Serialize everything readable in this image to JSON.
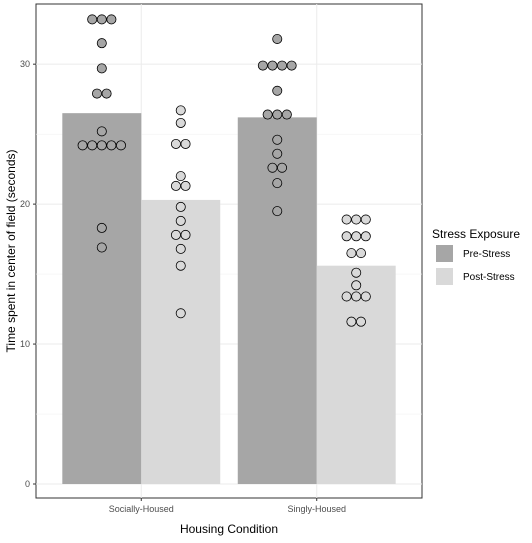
{
  "chart_data": {
    "type": "bar",
    "xlabel": "Housing Condition",
    "ylabel": "Time spent in center of field (seconds)",
    "categories": [
      "Socially-Housed",
      "Singly-Housed"
    ],
    "ylim": [
      -1,
      34.3
    ],
    "yticks": [
      0,
      10,
      20,
      30
    ],
    "grid": true,
    "legend_position": "right",
    "legend": {
      "title": "Stress Exposure"
    },
    "series": [
      {
        "name": "Pre-Stress",
        "color": "#a6a6a6",
        "values": [
          26.5,
          26.2
        ],
        "points": [
          [
            33.2,
            33.2,
            33.2,
            31.5,
            29.7,
            27.9,
            27.9,
            25.2,
            24.2,
            24.2,
            24.2,
            24.2,
            24.2,
            18.3,
            16.9
          ],
          [
            31.8,
            29.9,
            29.9,
            29.9,
            29.9,
            28.1,
            26.4,
            26.4,
            26.4,
            24.6,
            23.6,
            22.6,
            22.6,
            21.5,
            19.5
          ]
        ]
      },
      {
        "name": "Post-Stress",
        "color": "#d9d9d9",
        "values": [
          20.3,
          15.6
        ],
        "points": [
          [
            26.7,
            25.8,
            24.3,
            24.3,
            22.0,
            21.3,
            21.3,
            19.8,
            18.8,
            17.8,
            17.8,
            16.8,
            15.6,
            12.2
          ],
          [
            18.9,
            18.9,
            18.9,
            17.7,
            17.7,
            17.7,
            16.5,
            16.5,
            15.1,
            14.2,
            13.4,
            13.4,
            13.4,
            11.6,
            11.6
          ]
        ]
      }
    ]
  }
}
